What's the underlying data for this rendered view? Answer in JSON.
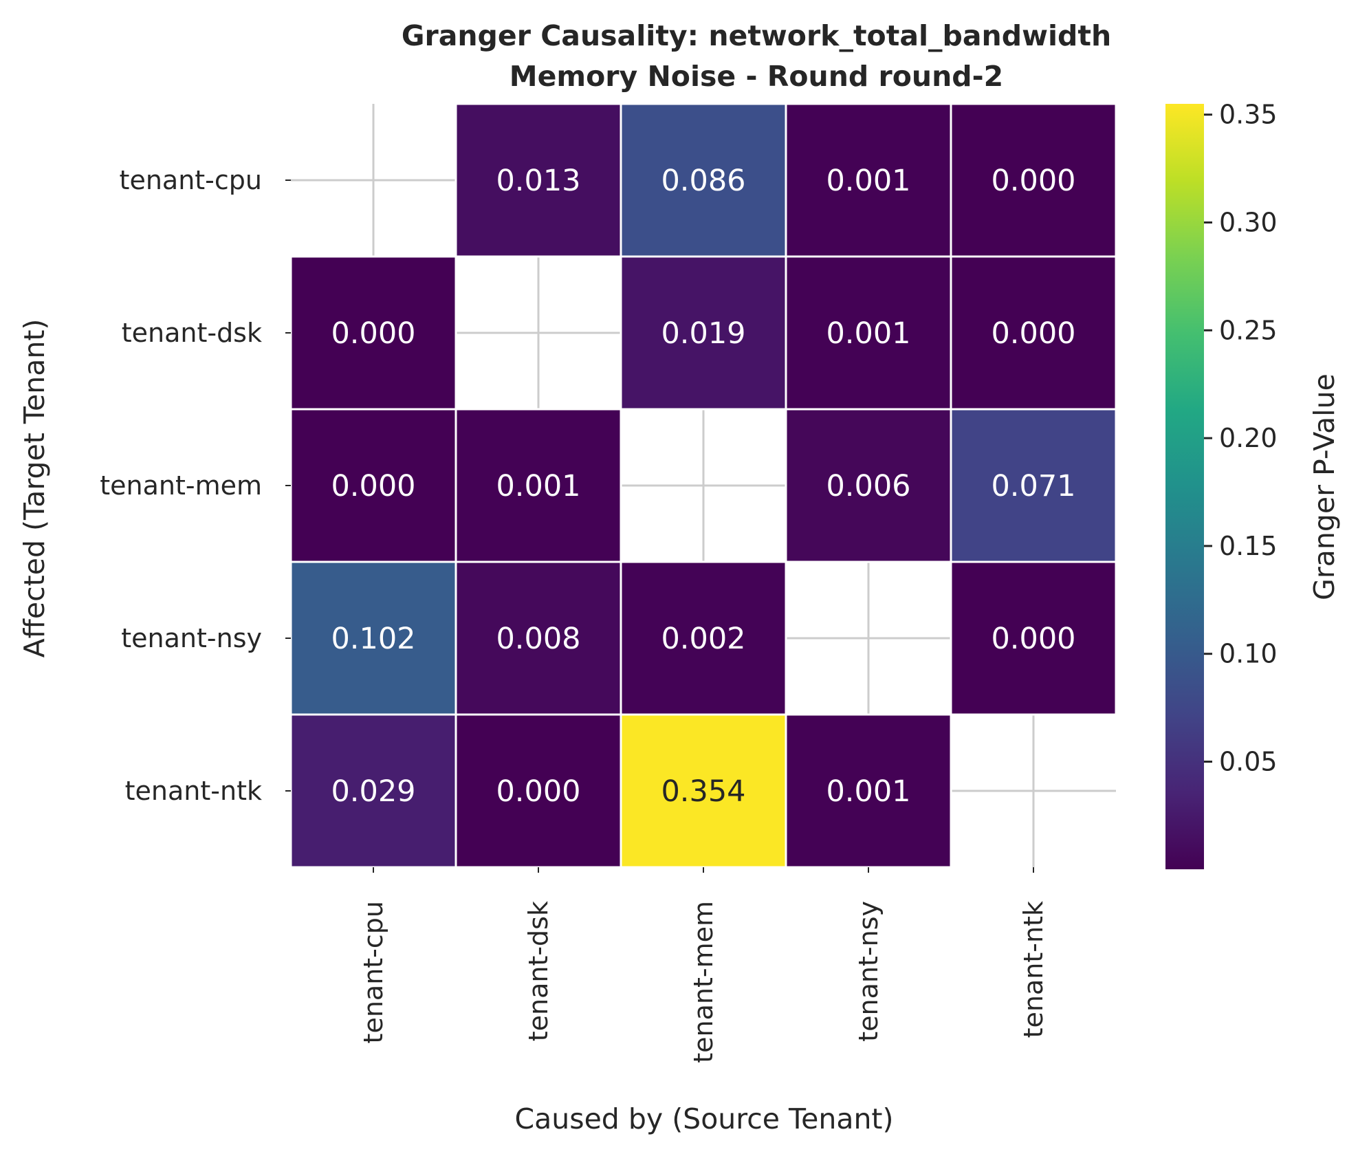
{
  "chart_data": {
    "type": "heatmap",
    "title": "Granger Causality: network_total_bandwidth",
    "subtitle": "Memory Noise - Round round-2",
    "xlabel": "Caused by (Source Tenant)",
    "ylabel": "Affected (Target Tenant)",
    "x_categories": [
      "tenant-cpu",
      "tenant-dsk",
      "tenant-mem",
      "tenant-nsy",
      "tenant-ntk"
    ],
    "y_categories": [
      "tenant-cpu",
      "tenant-dsk",
      "tenant-mem",
      "tenant-nsy",
      "tenant-ntk"
    ],
    "values": [
      [
        null,
        0.013,
        0.086,
        0.001,
        0.0
      ],
      [
        0.0,
        null,
        0.019,
        0.001,
        0.0
      ],
      [
        0.0,
        0.001,
        null,
        0.006,
        0.071
      ],
      [
        0.102,
        0.008,
        0.002,
        null,
        0.0
      ],
      [
        0.029,
        0.0,
        0.354,
        0.001,
        null
      ]
    ],
    "cell_labels": [
      [
        "",
        "0.013",
        "0.086",
        "0.001",
        "0.000"
      ],
      [
        "0.000",
        "",
        "0.019",
        "0.001",
        "0.000"
      ],
      [
        "0.000",
        "0.001",
        "",
        "0.006",
        "0.071"
      ],
      [
        "0.102",
        "0.008",
        "0.002",
        "",
        "0.000"
      ],
      [
        "0.029",
        "0.000",
        "0.354",
        "0.001",
        ""
      ]
    ],
    "colorbar": {
      "label": "Granger P-Value",
      "colormap": "viridis",
      "vmin": 0.0001,
      "vmax": 0.355,
      "ticks": [
        0.05,
        0.1,
        0.15,
        0.2,
        0.25,
        0.3,
        0.35
      ],
      "tick_labels": [
        "0.05",
        "0.10",
        "0.15",
        "0.20",
        "0.25",
        "0.30",
        "0.35"
      ]
    },
    "grid": true
  }
}
